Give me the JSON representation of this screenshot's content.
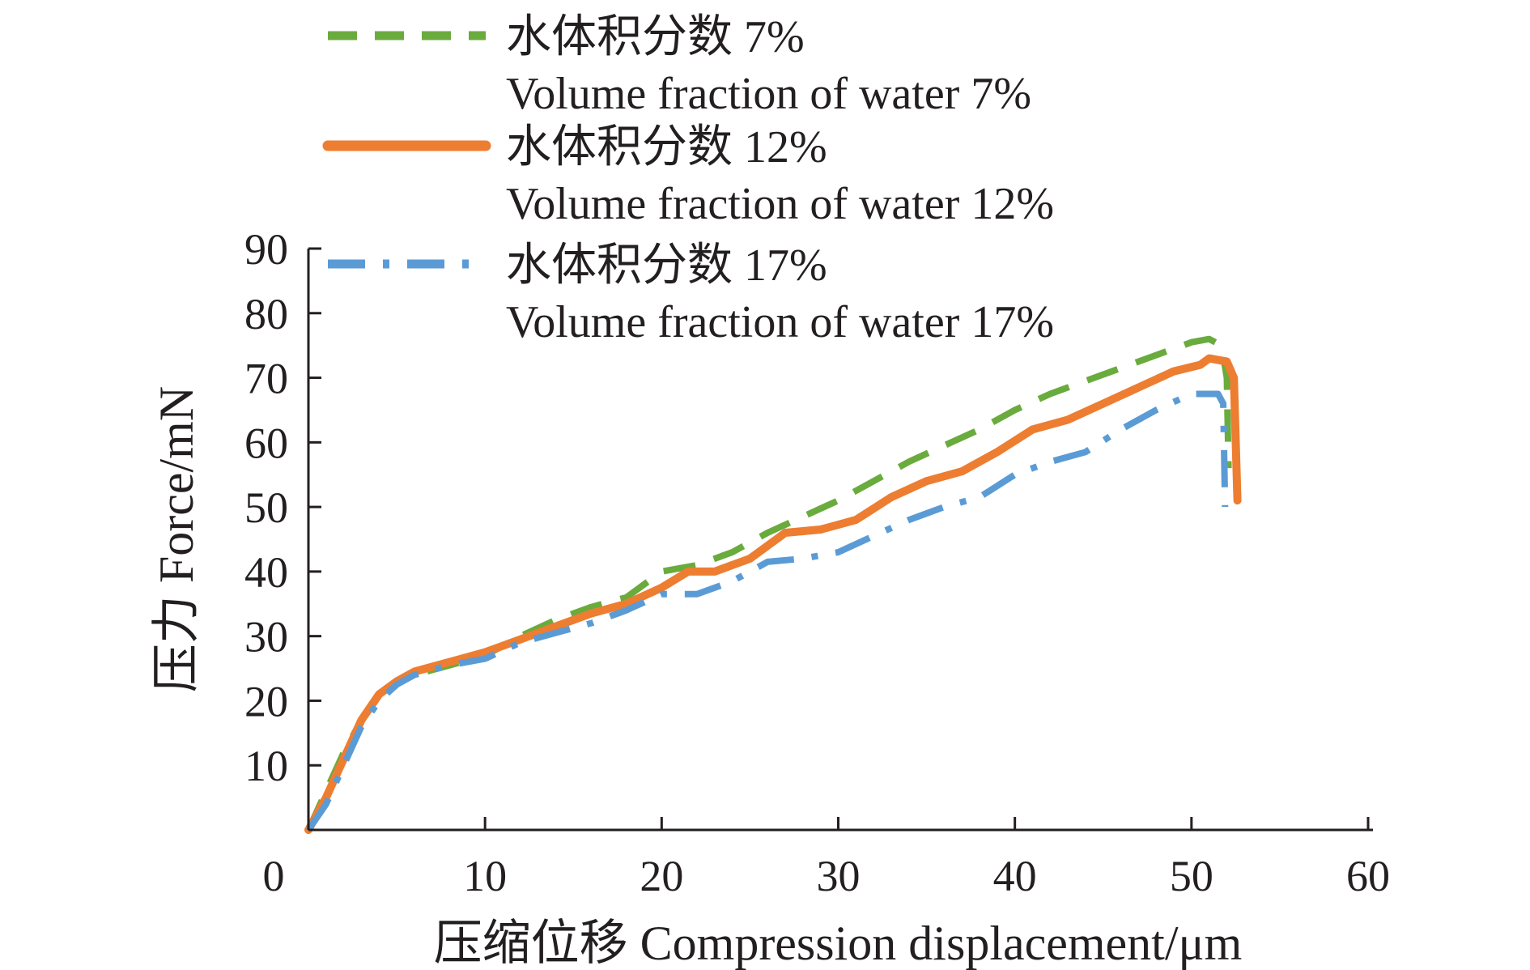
{
  "chart_data": {
    "type": "line",
    "xlabel": "压缩位移 Compression displacement/μm",
    "ylabel": "压力 Force/mN",
    "xlim": [
      0,
      60
    ],
    "ylim": [
      0,
      90
    ],
    "x_ticks": [
      "0",
      "10",
      "20",
      "30",
      "40",
      "50",
      "60"
    ],
    "y_ticks": [
      "10",
      "20",
      "30",
      "40",
      "50",
      "60",
      "70",
      "80",
      "90"
    ],
    "grid": false,
    "legend_position": "top",
    "series": [
      {
        "name_cn": "水体积分数 7%",
        "name_en": "Volume fraction of water 7%",
        "color": "#6aab3e",
        "style": "dashed",
        "points": [
          [
            0,
            0
          ],
          [
            1,
            6
          ],
          [
            2,
            12
          ],
          [
            3,
            17
          ],
          [
            4,
            21
          ],
          [
            5,
            23
          ],
          [
            6,
            24
          ],
          [
            8,
            25.5
          ],
          [
            10,
            27
          ],
          [
            12,
            30
          ],
          [
            14,
            32.5
          ],
          [
            16,
            34.5
          ],
          [
            18,
            36
          ],
          [
            20,
            40
          ],
          [
            22,
            41
          ],
          [
            24,
            43
          ],
          [
            26,
            46
          ],
          [
            28,
            48.5
          ],
          [
            30,
            51
          ],
          [
            32,
            54
          ],
          [
            34,
            57
          ],
          [
            36,
            59.5
          ],
          [
            38,
            62
          ],
          [
            40,
            65
          ],
          [
            42,
            67.5
          ],
          [
            44,
            69.5
          ],
          [
            46,
            71.5
          ],
          [
            48,
            73.5
          ],
          [
            50,
            75.5
          ],
          [
            51,
            76
          ],
          [
            51.7,
            75
          ],
          [
            52,
            70
          ],
          [
            52.1,
            56
          ]
        ]
      },
      {
        "name_cn": "水体积分数 12%",
        "name_en": "Volume fraction of water 12%",
        "color": "#ed7d31",
        "style": "solid",
        "points": [
          [
            0,
            0
          ],
          [
            1,
            5
          ],
          [
            2,
            11
          ],
          [
            3,
            17
          ],
          [
            4,
            21
          ],
          [
            5,
            23
          ],
          [
            6,
            24.5
          ],
          [
            8,
            26
          ],
          [
            10,
            27.5
          ],
          [
            12,
            29.5
          ],
          [
            14,
            31.5
          ],
          [
            16,
            33.5
          ],
          [
            18,
            35
          ],
          [
            20,
            37.5
          ],
          [
            21.5,
            40
          ],
          [
            23,
            40
          ],
          [
            25,
            42
          ],
          [
            27,
            46
          ],
          [
            29,
            46.5
          ],
          [
            31,
            48
          ],
          [
            33,
            51.5
          ],
          [
            35,
            54
          ],
          [
            37,
            55.5
          ],
          [
            39,
            58.5
          ],
          [
            41,
            62
          ],
          [
            43,
            63.5
          ],
          [
            45,
            66
          ],
          [
            47,
            68.5
          ],
          [
            49,
            71
          ],
          [
            50.5,
            72
          ],
          [
            51,
            73
          ],
          [
            52,
            72.5
          ],
          [
            52.4,
            70
          ],
          [
            52.6,
            51
          ]
        ]
      },
      {
        "name_cn": "水体积分数 17%",
        "name_en": "Volume fraction of water 17%",
        "color": "#5b9bd5",
        "style": "dashdot",
        "points": [
          [
            0,
            0
          ],
          [
            1,
            4
          ],
          [
            2,
            10
          ],
          [
            3,
            16
          ],
          [
            4,
            20
          ],
          [
            5,
            22.5
          ],
          [
            6,
            24
          ],
          [
            8,
            25.5
          ],
          [
            10,
            26.5
          ],
          [
            12,
            29
          ],
          [
            14,
            30.5
          ],
          [
            16,
            32
          ],
          [
            18,
            34
          ],
          [
            20,
            36.5
          ],
          [
            22,
            36.5
          ],
          [
            24,
            38.5
          ],
          [
            26,
            41.5
          ],
          [
            28,
            42
          ],
          [
            30,
            43
          ],
          [
            32,
            45.5
          ],
          [
            34,
            48
          ],
          [
            36,
            50
          ],
          [
            38,
            51.5
          ],
          [
            40,
            55
          ],
          [
            42,
            57
          ],
          [
            44,
            58.5
          ],
          [
            46,
            62
          ],
          [
            48,
            65
          ],
          [
            50,
            67.5
          ],
          [
            51.5,
            67.5
          ],
          [
            51.8,
            66
          ],
          [
            51.9,
            50
          ]
        ]
      }
    ]
  }
}
